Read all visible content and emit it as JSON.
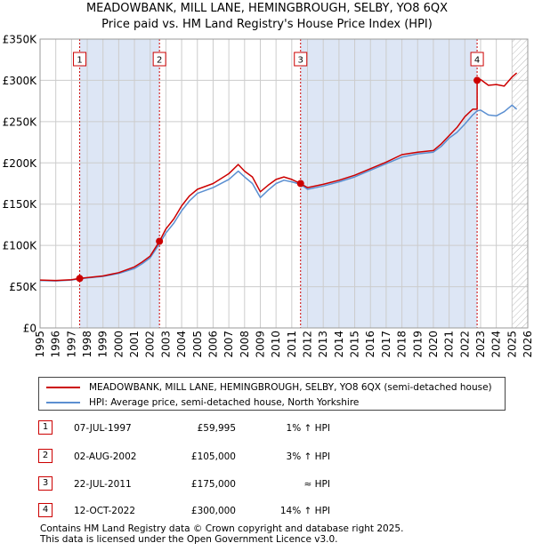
{
  "title_line1": "MEADOWBANK, MILL LANE, HEMINGBROUGH, SELBY, YO8 6QX",
  "title_line2": "Price paid vs. HM Land Registry's House Price Index (HPI)",
  "colors": {
    "property": "#cc0000",
    "hpi": "#5b8fd1",
    "shade": "#dde6f5",
    "grid": "#cccccc"
  },
  "chart_data": {
    "type": "line",
    "title": "Price paid vs. HM Land Registry's House Price Index (HPI)",
    "xlabel": "",
    "ylabel": "",
    "xlim": [
      1995,
      2026
    ],
    "ylim": [
      0,
      350000
    ],
    "y_ticks": [
      0,
      50000,
      100000,
      150000,
      200000,
      250000,
      300000,
      350000
    ],
    "y_tick_labels": [
      "£0",
      "£50K",
      "£100K",
      "£150K",
      "£200K",
      "£250K",
      "£300K",
      "£350K"
    ],
    "x_ticks": [
      1995,
      1996,
      1997,
      1998,
      1999,
      2000,
      2001,
      2002,
      2003,
      2004,
      2005,
      2006,
      2007,
      2008,
      2009,
      2010,
      2011,
      2012,
      2013,
      2014,
      2015,
      2016,
      2017,
      2018,
      2019,
      2020,
      2021,
      2022,
      2023,
      2024,
      2025,
      2026
    ],
    "x_tick_labels": [
      "1995",
      "1996",
      "1997",
      "1998",
      "1999",
      "2000",
      "2001",
      "2002",
      "2003",
      "2004",
      "2005",
      "2006",
      "2007",
      "2008",
      "2009",
      "2010",
      "2011",
      "2012",
      "2013",
      "2014",
      "2015",
      "2016",
      "2017",
      "2018",
      "2019",
      "2020",
      "2021",
      "2022",
      "2023",
      "2024",
      "2025",
      "2026"
    ],
    "grid": true,
    "shaded_periods": [
      [
        1997.52,
        2002.59
      ],
      [
        2011.56,
        2022.78
      ]
    ],
    "hatched_after": 2025.0,
    "series": [
      {
        "name": "MEADOWBANK, MILL LANE, HEMINGBROUGH, SELBY, YO8 6QX (semi-detached house)",
        "color": "#cc0000",
        "x": [
          1995.0,
          1996.0,
          1997.0,
          1997.52,
          1998.0,
          1999.0,
          2000.0,
          2001.0,
          2001.5,
          2002.0,
          2002.59,
          2003.0,
          2003.5,
          2004.0,
          2004.5,
          2005.0,
          2006.0,
          2007.0,
          2007.6,
          2008.0,
          2008.5,
          2009.0,
          2009.5,
          2010.0,
          2010.5,
          2011.0,
          2011.56,
          2012.0,
          2013.0,
          2014.0,
          2015.0,
          2016.0,
          2017.0,
          2018.0,
          2019.0,
          2020.0,
          2020.5,
          2021.0,
          2021.5,
          2022.0,
          2022.5,
          2022.78,
          2022.78,
          2023.0,
          2023.5,
          2024.0,
          2024.5,
          2025.0,
          2025.3
        ],
        "y": [
          58000,
          57500,
          58500,
          59995,
          61000,
          63000,
          67000,
          74000,
          80000,
          87000,
          105000,
          120000,
          132000,
          148000,
          160000,
          168000,
          175000,
          187000,
          198000,
          190000,
          183000,
          165000,
          173000,
          180000,
          183000,
          180000,
          175000,
          170000,
          174000,
          179000,
          185000,
          193000,
          201000,
          210000,
          213000,
          215000,
          223000,
          233000,
          243000,
          256000,
          265000,
          265000,
          300000,
          301000,
          294000,
          295000,
          293000,
          304000,
          309000
        ]
      },
      {
        "name": "HPI: Average price, semi-detached house, North Yorkshire",
        "color": "#5b8fd1",
        "x": [
          1995.0,
          1996.0,
          1997.0,
          1997.52,
          1998.0,
          1999.0,
          2000.0,
          2001.0,
          2001.5,
          2002.0,
          2002.59,
          2003.0,
          2003.5,
          2004.0,
          2004.5,
          2005.0,
          2006.0,
          2007.0,
          2007.6,
          2008.0,
          2008.5,
          2009.0,
          2009.5,
          2010.0,
          2010.5,
          2011.0,
          2011.56,
          2012.0,
          2013.0,
          2014.0,
          2015.0,
          2016.0,
          2017.0,
          2018.0,
          2019.0,
          2020.0,
          2020.5,
          2021.0,
          2021.5,
          2022.0,
          2022.5,
          2022.78,
          2023.0,
          2023.5,
          2024.0,
          2024.5,
          2025.0,
          2025.3
        ],
        "y": [
          57500,
          57000,
          58000,
          59400,
          60500,
          62500,
          66000,
          72000,
          78000,
          85000,
          102000,
          115000,
          127000,
          142000,
          154000,
          163000,
          170000,
          180000,
          190000,
          183000,
          175000,
          158000,
          167000,
          175000,
          179000,
          177000,
          174000,
          168000,
          172000,
          177000,
          183000,
          191000,
          199000,
          207000,
          211000,
          213000,
          220000,
          230000,
          237000,
          247000,
          258000,
          263000,
          264000,
          258000,
          257000,
          262000,
          270000,
          265000
        ]
      }
    ],
    "sales_markers": [
      {
        "label": "1",
        "x": 1997.52,
        "y": 59995
      },
      {
        "label": "2",
        "x": 2002.59,
        "y": 105000
      },
      {
        "label": "3",
        "x": 2011.56,
        "y": 175000
      },
      {
        "label": "4",
        "x": 2022.78,
        "y": 300000
      }
    ]
  },
  "legend": {
    "property_label": "MEADOWBANK, MILL LANE, HEMINGBROUGH, SELBY, YO8 6QX (semi-detached house)",
    "hpi_label": "HPI: Average price, semi-detached house, North Yorkshire"
  },
  "sales": [
    {
      "num": "1",
      "date": "07-JUL-1997",
      "price": "£59,995",
      "hpi": "1% ↑ HPI"
    },
    {
      "num": "2",
      "date": "02-AUG-2002",
      "price": "£105,000",
      "hpi": "3% ↑ HPI"
    },
    {
      "num": "3",
      "date": "22-JUL-2011",
      "price": "£175,000",
      "hpi": "≈ HPI"
    },
    {
      "num": "4",
      "date": "12-OCT-2022",
      "price": "£300,000",
      "hpi": "14% ↑ HPI"
    }
  ],
  "footer_line1": "Contains HM Land Registry data © Crown copyright and database right 2025.",
  "footer_line2": "This data is licensed under the Open Government Licence v3.0."
}
